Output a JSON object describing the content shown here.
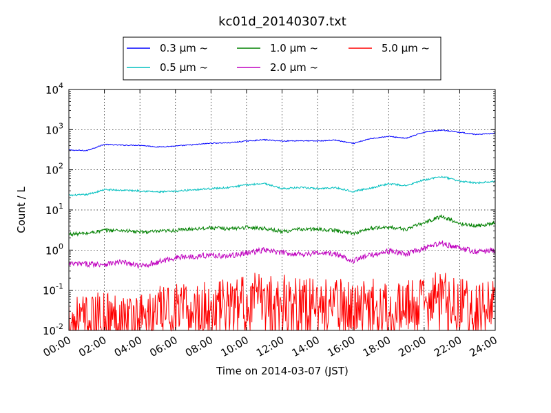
{
  "chart_data": {
    "type": "line",
    "title": "kc01d_20140307.txt",
    "xlabel": "Time on 2014-03-07 (JST)",
    "ylabel": "Count / L",
    "xlim": [
      "00:00",
      "24:00"
    ],
    "ylim": [
      0.01,
      10000
    ],
    "yscale": "log",
    "grid": true,
    "legend": "top-center",
    "x_ticks": [
      "00:00",
      "02:00",
      "04:00",
      "06:00",
      "08:00",
      "10:00",
      "12:00",
      "14:00",
      "16:00",
      "18:00",
      "20:00",
      "22:00",
      "24:00"
    ],
    "y_ticks": [
      {
        "base": "10",
        "exp": "-2"
      },
      {
        "base": "10",
        "exp": "-1"
      },
      {
        "base": "10",
        "exp": "0"
      },
      {
        "base": "10",
        "exp": "1"
      },
      {
        "base": "10",
        "exp": "2"
      },
      {
        "base": "10",
        "exp": "3"
      },
      {
        "base": "10",
        "exp": "4"
      }
    ],
    "x": [
      "00:00",
      "01:00",
      "02:00",
      "03:00",
      "04:00",
      "05:00",
      "06:00",
      "07:00",
      "08:00",
      "09:00",
      "10:00",
      "11:00",
      "12:00",
      "13:00",
      "14:00",
      "15:00",
      "16:00",
      "17:00",
      "18:00",
      "19:00",
      "20:00",
      "21:00",
      "22:00",
      "23:00",
      "24:00"
    ],
    "series": [
      {
        "name": "0.3 μm ~",
        "color": "#0000ff",
        "values": [
          310,
          300,
          430,
          410,
          410,
          370,
          390,
          420,
          460,
          470,
          520,
          560,
          520,
          530,
          520,
          550,
          450,
          600,
          680,
          610,
          870,
          980,
          860,
          750,
          820
        ]
      },
      {
        "name": "0.5 μm ~",
        "color": "#00bfbf",
        "values": [
          23,
          24,
          32,
          31,
          30,
          28,
          29,
          32,
          34,
          36,
          42,
          46,
          34,
          36,
          34,
          36,
          29,
          35,
          45,
          40,
          56,
          68,
          52,
          47,
          52
        ]
      },
      {
        "name": "1.0 μm ~",
        "color": "#008000",
        "values": [
          2.5,
          2.6,
          3.1,
          3.1,
          2.8,
          2.9,
          3.1,
          3.4,
          3.6,
          3.4,
          3.7,
          3.5,
          2.9,
          3.3,
          3.3,
          3.1,
          2.6,
          3.5,
          3.7,
          3.3,
          4.8,
          7.0,
          4.5,
          4.0,
          4.8
        ]
      },
      {
        "name": "2.0 μm ~",
        "color": "#bf00bf",
        "values": [
          0.45,
          0.45,
          0.45,
          0.5,
          0.4,
          0.5,
          0.65,
          0.7,
          0.75,
          0.7,
          0.85,
          1.0,
          0.85,
          0.8,
          0.85,
          0.8,
          0.55,
          0.75,
          0.95,
          0.8,
          1.1,
          1.5,
          1.1,
          0.9,
          1.0
        ]
      },
      {
        "name": "5.0 μm ~",
        "color": "#ff0000",
        "values": [
          0.02,
          0.015,
          0.02,
          0.02,
          0.02,
          0.025,
          0.03,
          0.03,
          0.035,
          0.04,
          0.05,
          0.06,
          0.05,
          0.05,
          0.045,
          0.04,
          0.035,
          0.04,
          0.04,
          0.035,
          0.05,
          0.06,
          0.04,
          0.035,
          0.04
        ]
      }
    ]
  }
}
